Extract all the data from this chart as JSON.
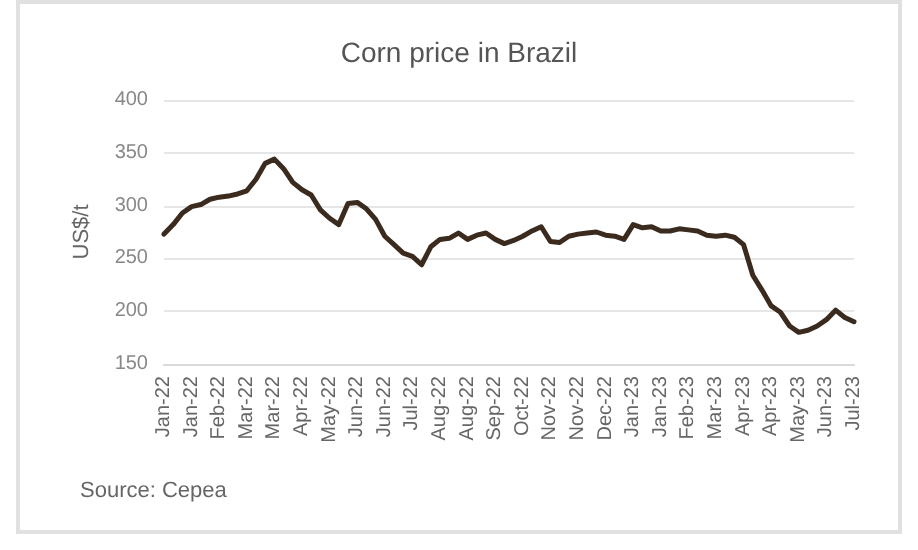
{
  "chart_data": {
    "type": "line",
    "title": "Corn price in Brazil",
    "ylabel": "US$/t",
    "categories": [
      "Jan-22",
      null,
      null,
      "Jan-22",
      null,
      null,
      "Feb-22",
      null,
      null,
      "Mar-22",
      null,
      null,
      "Mar-22",
      null,
      null,
      "Apr-22",
      null,
      null,
      "May-22",
      null,
      null,
      "Jun-22",
      null,
      null,
      "Jun-22",
      null,
      null,
      "Jul-22",
      null,
      null,
      "Aug-22",
      null,
      null,
      "Aug-22",
      null,
      null,
      "Sep-22",
      null,
      null,
      "Oct-22",
      null,
      null,
      "Nov-22",
      null,
      null,
      "Nov-22",
      null,
      null,
      "Dec-22",
      null,
      null,
      "Jan-23",
      null,
      null,
      "Jan-23",
      null,
      null,
      "Feb-23",
      null,
      null,
      "Mar-23",
      null,
      null,
      "Apr-23",
      null,
      null,
      "Apr-23",
      null,
      null,
      "May-23",
      null,
      null,
      "Jun-23",
      null,
      null,
      "Jul-23"
    ],
    "series": [
      {
        "color": "#3b2a1e",
        "values": [
          273,
          282,
          293,
          299,
          301,
          306,
          308,
          309,
          311,
          314,
          325,
          340,
          344,
          335,
          322,
          315,
          310,
          296,
          288,
          282,
          302,
          303,
          297,
          287,
          271,
          263,
          255,
          252,
          244,
          261,
          268,
          269,
          274,
          268,
          272,
          274,
          268,
          264,
          267,
          271,
          276,
          280,
          266,
          265,
          271,
          273,
          274,
          275,
          272,
          271,
          268,
          282,
          279,
          280,
          276,
          276,
          278,
          277,
          276,
          272,
          271,
          272,
          270,
          263,
          234,
          220,
          205,
          199,
          186,
          180,
          182,
          186,
          192,
          201,
          194,
          190
        ]
      }
    ],
    "ylim": [
      150,
      400
    ],
    "yticks": [
      150,
      200,
      250,
      300,
      350,
      400
    ],
    "grid": "y",
    "marker": "none",
    "line_style": "solid",
    "annotations": [
      "Source: Cepea"
    ]
  }
}
